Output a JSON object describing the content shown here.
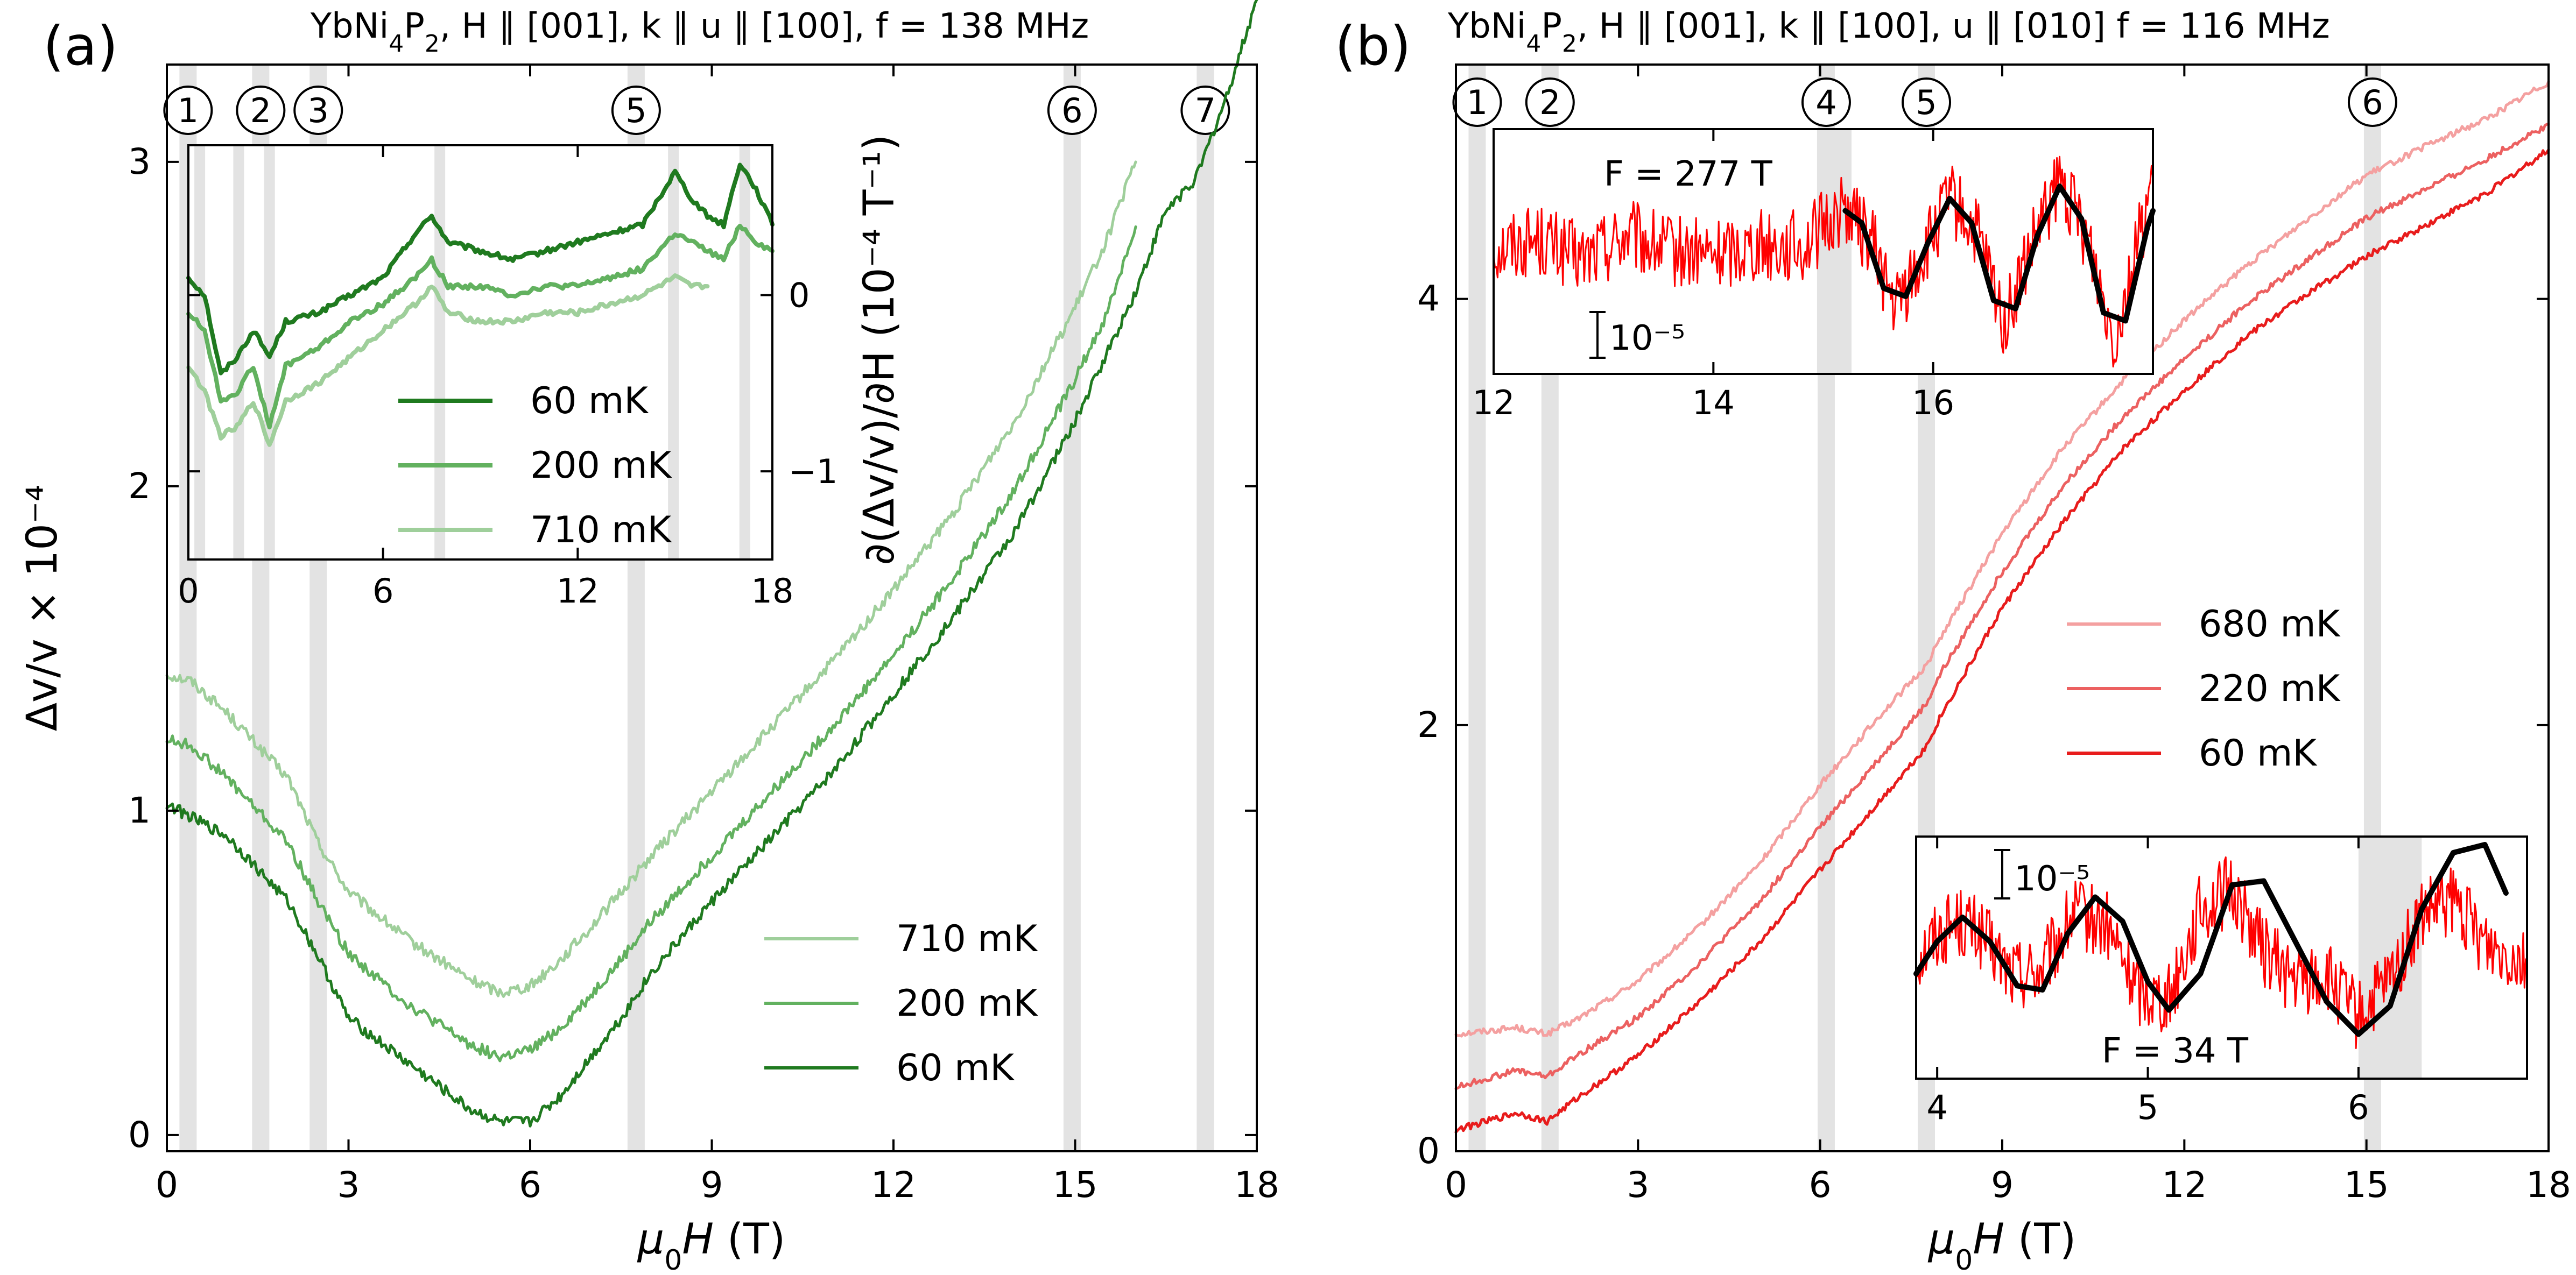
{
  "panels": [
    {
      "id": "a",
      "label": "(a)",
      "title_parts": {
        "pre": "YbNi",
        "sub": "4",
        "mid": "P",
        "sub2": "2",
        "post": ", H ∥ [001], k ∥ u ∥ [100], f = 138 MHz"
      },
      "xlabel": "μ₀H (T)",
      "ylabel": "Δv/v × 10⁻⁴",
      "markers": [
        "1",
        "2",
        "3",
        "5",
        "6",
        "7"
      ],
      "inset_ylabel": "∂(Δv/v)/∂H (10⁻⁴ T⁻¹)"
    },
    {
      "id": "b",
      "label": "(b)",
      "title_parts": {
        "pre": "YbNi",
        "sub": "4",
        "mid": "P",
        "sub2": "2",
        "post": ", H ∥ [001], k ∥ [100], u ∥ [010] f = 116 MHz"
      },
      "xlabel": "μ₀H (T)",
      "ylabel": "",
      "markers": [
        "1",
        "2",
        "4",
        "5",
        "6"
      ],
      "inset1_annotation": "F = 277 T",
      "inset1_scalebar": "10⁻⁵",
      "inset2_annotation": "F = 34 T",
      "inset2_scalebar": "10⁻⁵"
    }
  ],
  "chart_data": [
    {
      "type": "line",
      "panel": "a",
      "xlim": [
        0,
        18
      ],
      "ylim": [
        -0.05,
        3.3
      ],
      "xticks": [
        0,
        3,
        6,
        9,
        12,
        15,
        18
      ],
      "yticks": [
        0,
        1,
        2,
        3
      ],
      "grid": false,
      "legend_position": "bottom-right",
      "shaded_bands_T": [
        0.35,
        1.55,
        2.5,
        7.75,
        14.95,
        17.15
      ],
      "marker_labels": [
        {
          "label": "1",
          "x": 0.35
        },
        {
          "label": "2",
          "x": 1.55
        },
        {
          "label": "3",
          "x": 2.5
        },
        {
          "label": "5",
          "x": 7.75
        },
        {
          "label": "6",
          "x": 14.95
        },
        {
          "label": "7",
          "x": 17.15
        }
      ],
      "series": [
        {
          "name": "710 mK",
          "color": "#9fcf9b",
          "x": [
            0,
            0.4,
            1,
            2,
            2.5,
            3,
            4,
            5,
            5.5,
            6,
            6.5,
            7,
            7.5,
            8,
            9,
            10,
            11,
            12,
            13,
            14,
            15,
            15.5,
            16
          ],
          "y": [
            1.42,
            1.4,
            1.3,
            1.1,
            0.9,
            0.75,
            0.6,
            0.48,
            0.44,
            0.46,
            0.54,
            0.64,
            0.75,
            0.86,
            1.06,
            1.26,
            1.46,
            1.68,
            1.92,
            2.2,
            2.55,
            2.75,
            3.0
          ]
        },
        {
          "name": "200 mK",
          "color": "#62b15f",
          "x": [
            0,
            0.4,
            1,
            2,
            2.5,
            3,
            4,
            5,
            5.5,
            6,
            6.5,
            7,
            7.5,
            8,
            9,
            10,
            11,
            12,
            13,
            14,
            15,
            15.5,
            16
          ],
          "y": [
            1.22,
            1.2,
            1.1,
            0.9,
            0.72,
            0.56,
            0.4,
            0.28,
            0.24,
            0.26,
            0.33,
            0.43,
            0.54,
            0.66,
            0.86,
            1.06,
            1.26,
            1.48,
            1.72,
            1.99,
            2.33,
            2.52,
            2.8
          ]
        },
        {
          "name": "60 mK",
          "color": "#1f7a1f",
          "x": [
            0,
            0.4,
            1,
            2,
            2.5,
            3,
            4,
            5,
            5.5,
            6,
            6.5,
            7,
            7.5,
            8,
            9,
            10,
            11,
            12,
            13,
            14,
            15,
            16,
            16.5,
            17,
            17.5,
            18
          ],
          "y": [
            1.02,
            0.98,
            0.92,
            0.72,
            0.55,
            0.36,
            0.22,
            0.08,
            0.04,
            0.04,
            0.12,
            0.24,
            0.36,
            0.5,
            0.72,
            0.92,
            1.12,
            1.36,
            1.6,
            1.86,
            2.2,
            2.6,
            2.85,
            2.95,
            3.2,
            3.5
          ]
        }
      ]
    },
    {
      "type": "line",
      "panel": "a-inset",
      "xlim": [
        0,
        18
      ],
      "ylim": [
        -1.5,
        0.85
      ],
      "xticks": [
        0,
        6,
        12,
        18
      ],
      "yticks": [
        -1,
        0
      ],
      "legend_position": "center-left",
      "shaded_bands_T": [
        0.35,
        1.55,
        2.5,
        7.75,
        14.95,
        17.15
      ],
      "series": [
        {
          "name": "60 mK",
          "color": "#1f7a1f",
          "x": [
            0,
            0.5,
            1,
            1.5,
            2,
            2.5,
            3,
            4,
            5,
            6,
            7,
            7.5,
            8,
            9,
            10,
            11,
            12,
            13,
            14,
            14.5,
            15,
            15.5,
            16,
            16.5,
            17,
            17.5,
            18
          ],
          "y": [
            0.1,
            0.0,
            -0.45,
            -0.35,
            -0.2,
            -0.35,
            -0.15,
            -0.1,
            0.0,
            0.1,
            0.35,
            0.45,
            0.3,
            0.25,
            0.2,
            0.25,
            0.3,
            0.35,
            0.4,
            0.55,
            0.7,
            0.55,
            0.45,
            0.4,
            0.75,
            0.6,
            0.4
          ]
        },
        {
          "name": "200 mK",
          "color": "#62b15f",
          "x": [
            0,
            0.5,
            1,
            1.5,
            2,
            2.5,
            3,
            4,
            5,
            6,
            7,
            7.5,
            8,
            9,
            10,
            11,
            12,
            13,
            14,
            14.5,
            15,
            15.5,
            16,
            16.5,
            17,
            17.5,
            18
          ],
          "y": [
            -0.1,
            -0.2,
            -0.6,
            -0.55,
            -0.4,
            -0.75,
            -0.4,
            -0.3,
            -0.15,
            -0.05,
            0.1,
            0.2,
            0.05,
            0.05,
            0.0,
            0.05,
            0.05,
            0.1,
            0.15,
            0.25,
            0.35,
            0.3,
            0.25,
            0.2,
            0.4,
            0.3,
            0.25
          ]
        },
        {
          "name": "710 mK",
          "color": "#9fcf9b",
          "x": [
            0,
            0.5,
            1,
            1.5,
            2,
            2.5,
            3,
            4,
            5,
            6,
            7,
            7.5,
            8,
            9,
            10,
            11,
            12,
            13,
            14,
            14.5,
            15,
            15.5,
            16
          ],
          "y": [
            -0.4,
            -0.55,
            -0.8,
            -0.75,
            -0.6,
            -0.85,
            -0.6,
            -0.5,
            -0.35,
            -0.2,
            -0.05,
            0.05,
            -0.1,
            -0.15,
            -0.15,
            -0.1,
            -0.1,
            -0.05,
            0.0,
            0.05,
            0.1,
            0.05,
            0.05
          ]
        }
      ]
    },
    {
      "type": "line",
      "panel": "b",
      "xlim": [
        0,
        18
      ],
      "ylim": [
        0,
        5.1
      ],
      "xticks": [
        0,
        3,
        6,
        9,
        12,
        15,
        18
      ],
      "yticks": [
        0,
        2,
        4
      ],
      "grid": false,
      "legend_position": "center-right",
      "shaded_bands_T": [
        0.35,
        1.55,
        6.1,
        7.75,
        15.1
      ],
      "marker_labels": [
        {
          "label": "1",
          "x": 0.35
        },
        {
          "label": "2",
          "x": 1.55
        },
        {
          "label": "4",
          "x": 6.1
        },
        {
          "label": "5",
          "x": 7.75
        },
        {
          "label": "6",
          "x": 15.1
        }
      ],
      "series": [
        {
          "name": "680 mK",
          "color": "#f4a0a0",
          "x": [
            0,
            1,
            1.5,
            2,
            3,
            4,
            5,
            6,
            7,
            7.75,
            8,
            9,
            10,
            11,
            12,
            13,
            14,
            15,
            16,
            17,
            18
          ],
          "y": [
            0.55,
            0.58,
            0.55,
            0.62,
            0.8,
            1.05,
            1.35,
            1.72,
            2.05,
            2.28,
            2.42,
            2.9,
            3.3,
            3.62,
            3.9,
            4.15,
            4.37,
            4.58,
            4.72,
            4.85,
            5.02
          ]
        },
        {
          "name": "220 mK",
          "color": "#ec6060",
          "x": [
            0,
            1,
            1.5,
            2,
            3,
            4,
            5,
            6,
            7,
            7.75,
            8,
            9,
            10,
            11,
            12,
            13,
            14,
            15,
            16,
            17,
            18
          ],
          "y": [
            0.3,
            0.38,
            0.35,
            0.45,
            0.63,
            0.88,
            1.17,
            1.52,
            1.85,
            2.1,
            2.25,
            2.72,
            3.12,
            3.45,
            3.72,
            3.97,
            4.18,
            4.38,
            4.52,
            4.66,
            4.82
          ]
        },
        {
          "name": "60 mK",
          "color": "#e81c1c",
          "x": [
            0,
            1,
            1.5,
            2,
            3,
            4,
            5,
            6,
            7,
            7.75,
            8,
            9,
            10,
            11,
            12,
            13,
            14,
            15,
            16,
            17,
            18
          ],
          "y": [
            0.1,
            0.18,
            0.14,
            0.25,
            0.45,
            0.7,
            0.98,
            1.32,
            1.65,
            1.9,
            2.05,
            2.55,
            2.95,
            3.3,
            3.57,
            3.82,
            4.02,
            4.2,
            4.35,
            4.5,
            4.7
          ]
        }
      ]
    },
    {
      "type": "line",
      "panel": "b-inset-upper",
      "xlim": [
        12,
        18
      ],
      "ylim": [
        -1.5,
        1.5
      ],
      "xticks": [
        12,
        14,
        16
      ],
      "shaded_bands_T": [
        15.1
      ],
      "annotation": "F = 277 T",
      "series": [
        {
          "name": "data",
          "color": "#ff0000",
          "x": [
            12,
            12.4,
            12.8,
            13.2,
            13.6,
            14,
            14.4,
            14.8,
            15.2,
            15.45,
            15.65,
            15.9,
            16.15,
            16.4,
            16.65,
            16.9,
            17.15,
            17.4,
            17.65,
            17.9,
            18
          ],
          "y": [
            0.05,
            0.15,
            -0.1,
            0.2,
            0.0,
            -0.05,
            0.1,
            0.05,
            0.55,
            0.1,
            -0.7,
            -0.1,
            0.65,
            0.2,
            -0.9,
            0.05,
            0.85,
            0.2,
            -1.05,
            0.3,
            0.9
          ]
        },
        {
          "name": "fit",
          "color": "#000000",
          "x": [
            15.2,
            15.35,
            15.55,
            15.75,
            15.95,
            16.15,
            16.35,
            16.55,
            16.75,
            16.95,
            17.15,
            17.35,
            17.55,
            17.75,
            17.95,
            18.0
          ],
          "y": [
            0.5,
            0.35,
            -0.45,
            -0.55,
            0.1,
            0.65,
            0.35,
            -0.6,
            -0.7,
            0.2,
            0.8,
            0.4,
            -0.75,
            -0.85,
            0.3,
            0.5
          ]
        }
      ]
    },
    {
      "type": "line",
      "panel": "b-inset-lower",
      "xlim": [
        3.9,
        6.8
      ],
      "ylim": [
        -1.5,
        1.5
      ],
      "xticks": [
        4,
        5,
        6
      ],
      "shaded_bands_T": [
        6.15
      ],
      "annotation": "F = 34 T",
      "series": [
        {
          "name": "data",
          "color": "#ff0000",
          "x": [
            3.9,
            4.0,
            4.1,
            4.2,
            4.35,
            4.5,
            4.65,
            4.8,
            4.95,
            5.1,
            5.25,
            5.4,
            5.55,
            5.7,
            5.85,
            6.0,
            6.15,
            6.3,
            6.45,
            6.6,
            6.8
          ],
          "y": [
            0.0,
            0.3,
            0.45,
            0.3,
            -0.2,
            -0.15,
            0.55,
            0.4,
            -0.4,
            -0.5,
            0.6,
            0.85,
            0.1,
            -0.3,
            -0.25,
            -0.75,
            -0.3,
            0.5,
            0.7,
            0.2,
            0.0
          ]
        },
        {
          "name": "fit",
          "color": "#000000",
          "x": [
            3.9,
            4.0,
            4.12,
            4.25,
            4.38,
            4.5,
            4.62,
            4.75,
            4.88,
            5.0,
            5.1,
            5.25,
            5.4,
            5.55,
            5.7,
            5.85,
            6.0,
            6.15,
            6.3,
            6.45,
            6.6,
            6.7
          ],
          "y": [
            -0.2,
            0.2,
            0.5,
            0.2,
            -0.35,
            -0.4,
            0.3,
            0.75,
            0.45,
            -0.3,
            -0.65,
            -0.2,
            0.9,
            0.95,
            0.2,
            -0.55,
            -0.95,
            -0.6,
            0.6,
            1.3,
            1.4,
            0.8
          ]
        }
      ]
    }
  ]
}
